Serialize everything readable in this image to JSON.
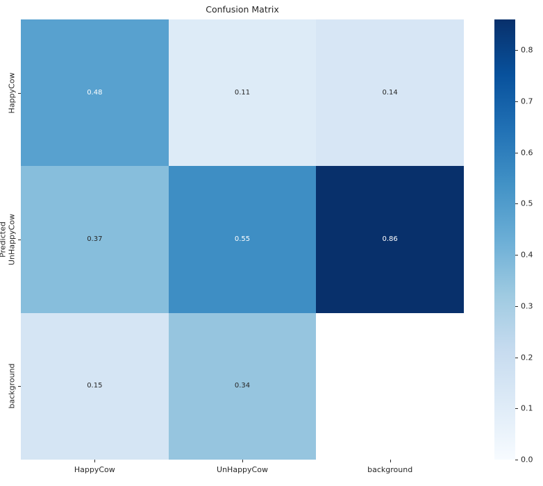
{
  "title": "Confusion Matrix",
  "axes": {
    "ylabel": "Predicted",
    "x_tick_labels": [
      "HappyCow",
      "UnHappyCow",
      "background"
    ],
    "y_tick_labels": [
      "HappyCow",
      "UnHappyCow",
      "background"
    ]
  },
  "chart_data": {
    "type": "heatmap",
    "title": "Confusion Matrix",
    "rows": [
      "HappyCow",
      "UnHappyCow",
      "background"
    ],
    "cols": [
      "HappyCow",
      "UnHappyCow",
      "background"
    ],
    "ylabel": "Predicted",
    "matrix": [
      [
        0.48,
        0.11,
        0.14
      ],
      [
        0.37,
        0.55,
        0.86
      ],
      [
        0.15,
        0.34,
        null
      ]
    ],
    "cell_labels": [
      [
        "0.48",
        "0.11",
        "0.14"
      ],
      [
        "0.37",
        "0.55",
        "0.86"
      ],
      [
        "0.15",
        "0.34",
        ""
      ]
    ],
    "vmin": 0.0,
    "vmax": 0.86,
    "colormap": "Blues",
    "colorbar_ticks": [
      "0.0",
      "0.1",
      "0.2",
      "0.3",
      "0.4",
      "0.5",
      "0.6",
      "0.7",
      "0.8"
    ],
    "colorbar_position": "right",
    "grid": false
  },
  "colors": {
    "colormap_anchors": [
      "#f7fbff",
      "#deebf7",
      "#c6dbef",
      "#9ecae1",
      "#6baed6",
      "#4292c6",
      "#2171b5",
      "#08519c",
      "#08306b"
    ],
    "annotation_dark": "#262626",
    "annotation_light": "#ffffff",
    "empty_cell": "#ffffff",
    "background": "#ffffff"
  }
}
